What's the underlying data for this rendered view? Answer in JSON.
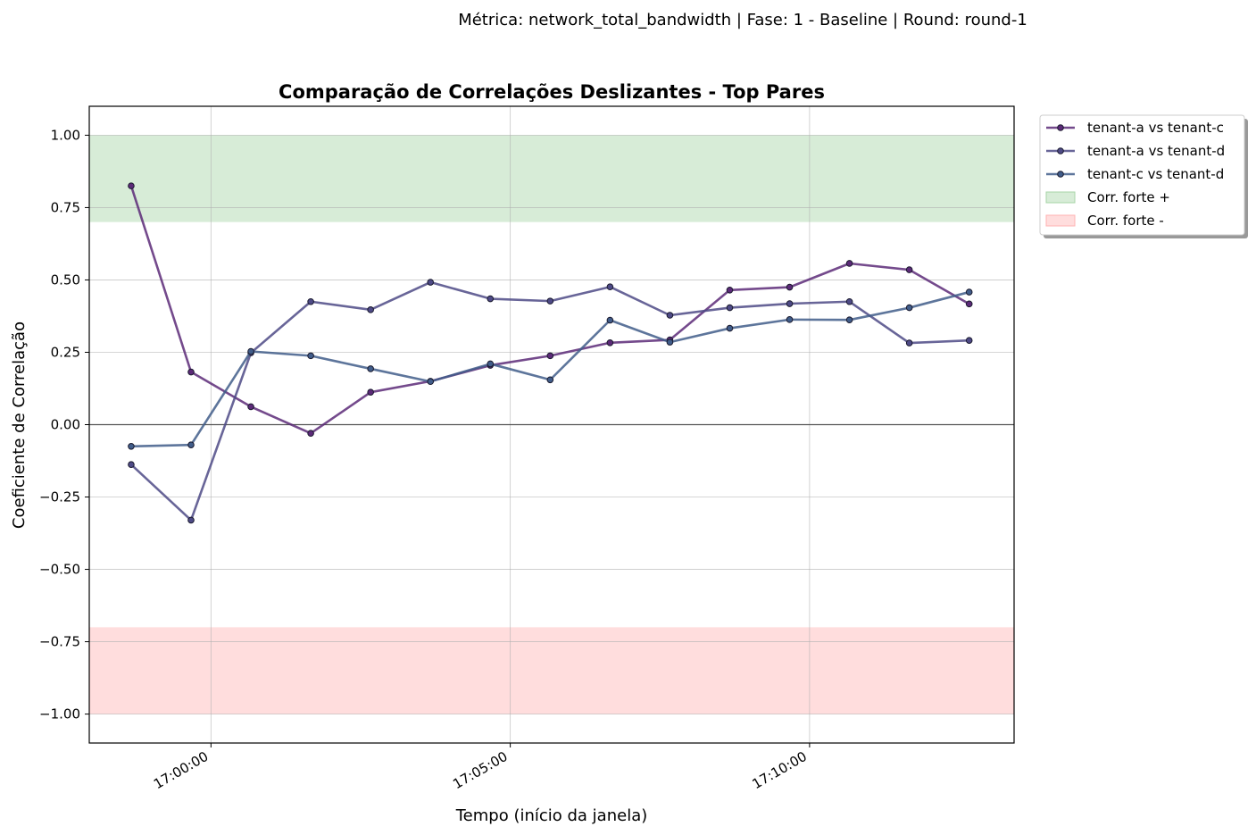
{
  "figure": {
    "suptitle": "Métrica: network_total_bandwidth | Fase: 1 - Baseline | Round: round-1"
  },
  "chart_data": {
    "type": "line",
    "title": "Comparação de Correlações Deslizantes - Top Pares",
    "xlabel": "Tempo (início da janela)",
    "ylabel": "Coeficiente de Correlação",
    "ylim": [
      -1.1,
      1.1
    ],
    "xlim": [
      "16:57:58",
      "17:13:25"
    ],
    "yticks": [
      1.0,
      0.75,
      0.5,
      0.25,
      0.0,
      -0.25,
      -0.5,
      -0.75,
      -1.0
    ],
    "ytick_labels": [
      "1.00",
      "0.75",
      "0.50",
      "0.25",
      "0.00",
      "−0.25",
      "−0.50",
      "−0.75",
      "−1.00"
    ],
    "xticks": [
      "17:00:00",
      "17:05:00",
      "17:10:00"
    ],
    "xtick_labels": [
      "17:00:00",
      "17:05:00",
      "17:10:00"
    ],
    "grid": true,
    "zero_line": 0,
    "legend_placement": "outside-top-right",
    "x": [
      "16:58:40",
      "16:59:40",
      "17:00:40",
      "17:01:40",
      "17:02:40",
      "17:03:40",
      "17:04:40",
      "17:05:40",
      "17:06:40",
      "17:07:40",
      "17:08:40",
      "17:09:40",
      "17:10:40",
      "17:11:40",
      "17:12:40"
    ],
    "series": [
      {
        "name": "tenant-a vs tenant-c",
        "color": "#5c2a78",
        "values": [
          0.825,
          0.182,
          0.062,
          -0.03,
          0.112,
          0.15,
          0.205,
          0.238,
          0.283,
          0.293,
          0.465,
          0.475,
          0.557,
          0.535,
          0.417
        ]
      },
      {
        "name": "tenant-a vs tenant-d",
        "color": "#4e4a86",
        "values": [
          -0.138,
          -0.33,
          0.248,
          0.425,
          0.397,
          0.492,
          0.435,
          0.427,
          0.476,
          0.378,
          0.404,
          0.418,
          0.425,
          0.282,
          0.291
        ]
      },
      {
        "name": "tenant-c vs tenant-d",
        "color": "#415d8a",
        "values": [
          -0.075,
          -0.07,
          0.253,
          0.238,
          0.193,
          0.149,
          0.21,
          0.155,
          0.361,
          0.285,
          0.333,
          0.363,
          0.362,
          0.404,
          0.458
        ]
      }
    ],
    "bands": [
      {
        "name": "Corr. forte +",
        "from": 0.7,
        "to": 1.0,
        "color": "#a7d4a7"
      },
      {
        "name": "Corr. forte -",
        "from": -1.0,
        "to": -0.7,
        "color": "#ffb3b3"
      }
    ]
  }
}
